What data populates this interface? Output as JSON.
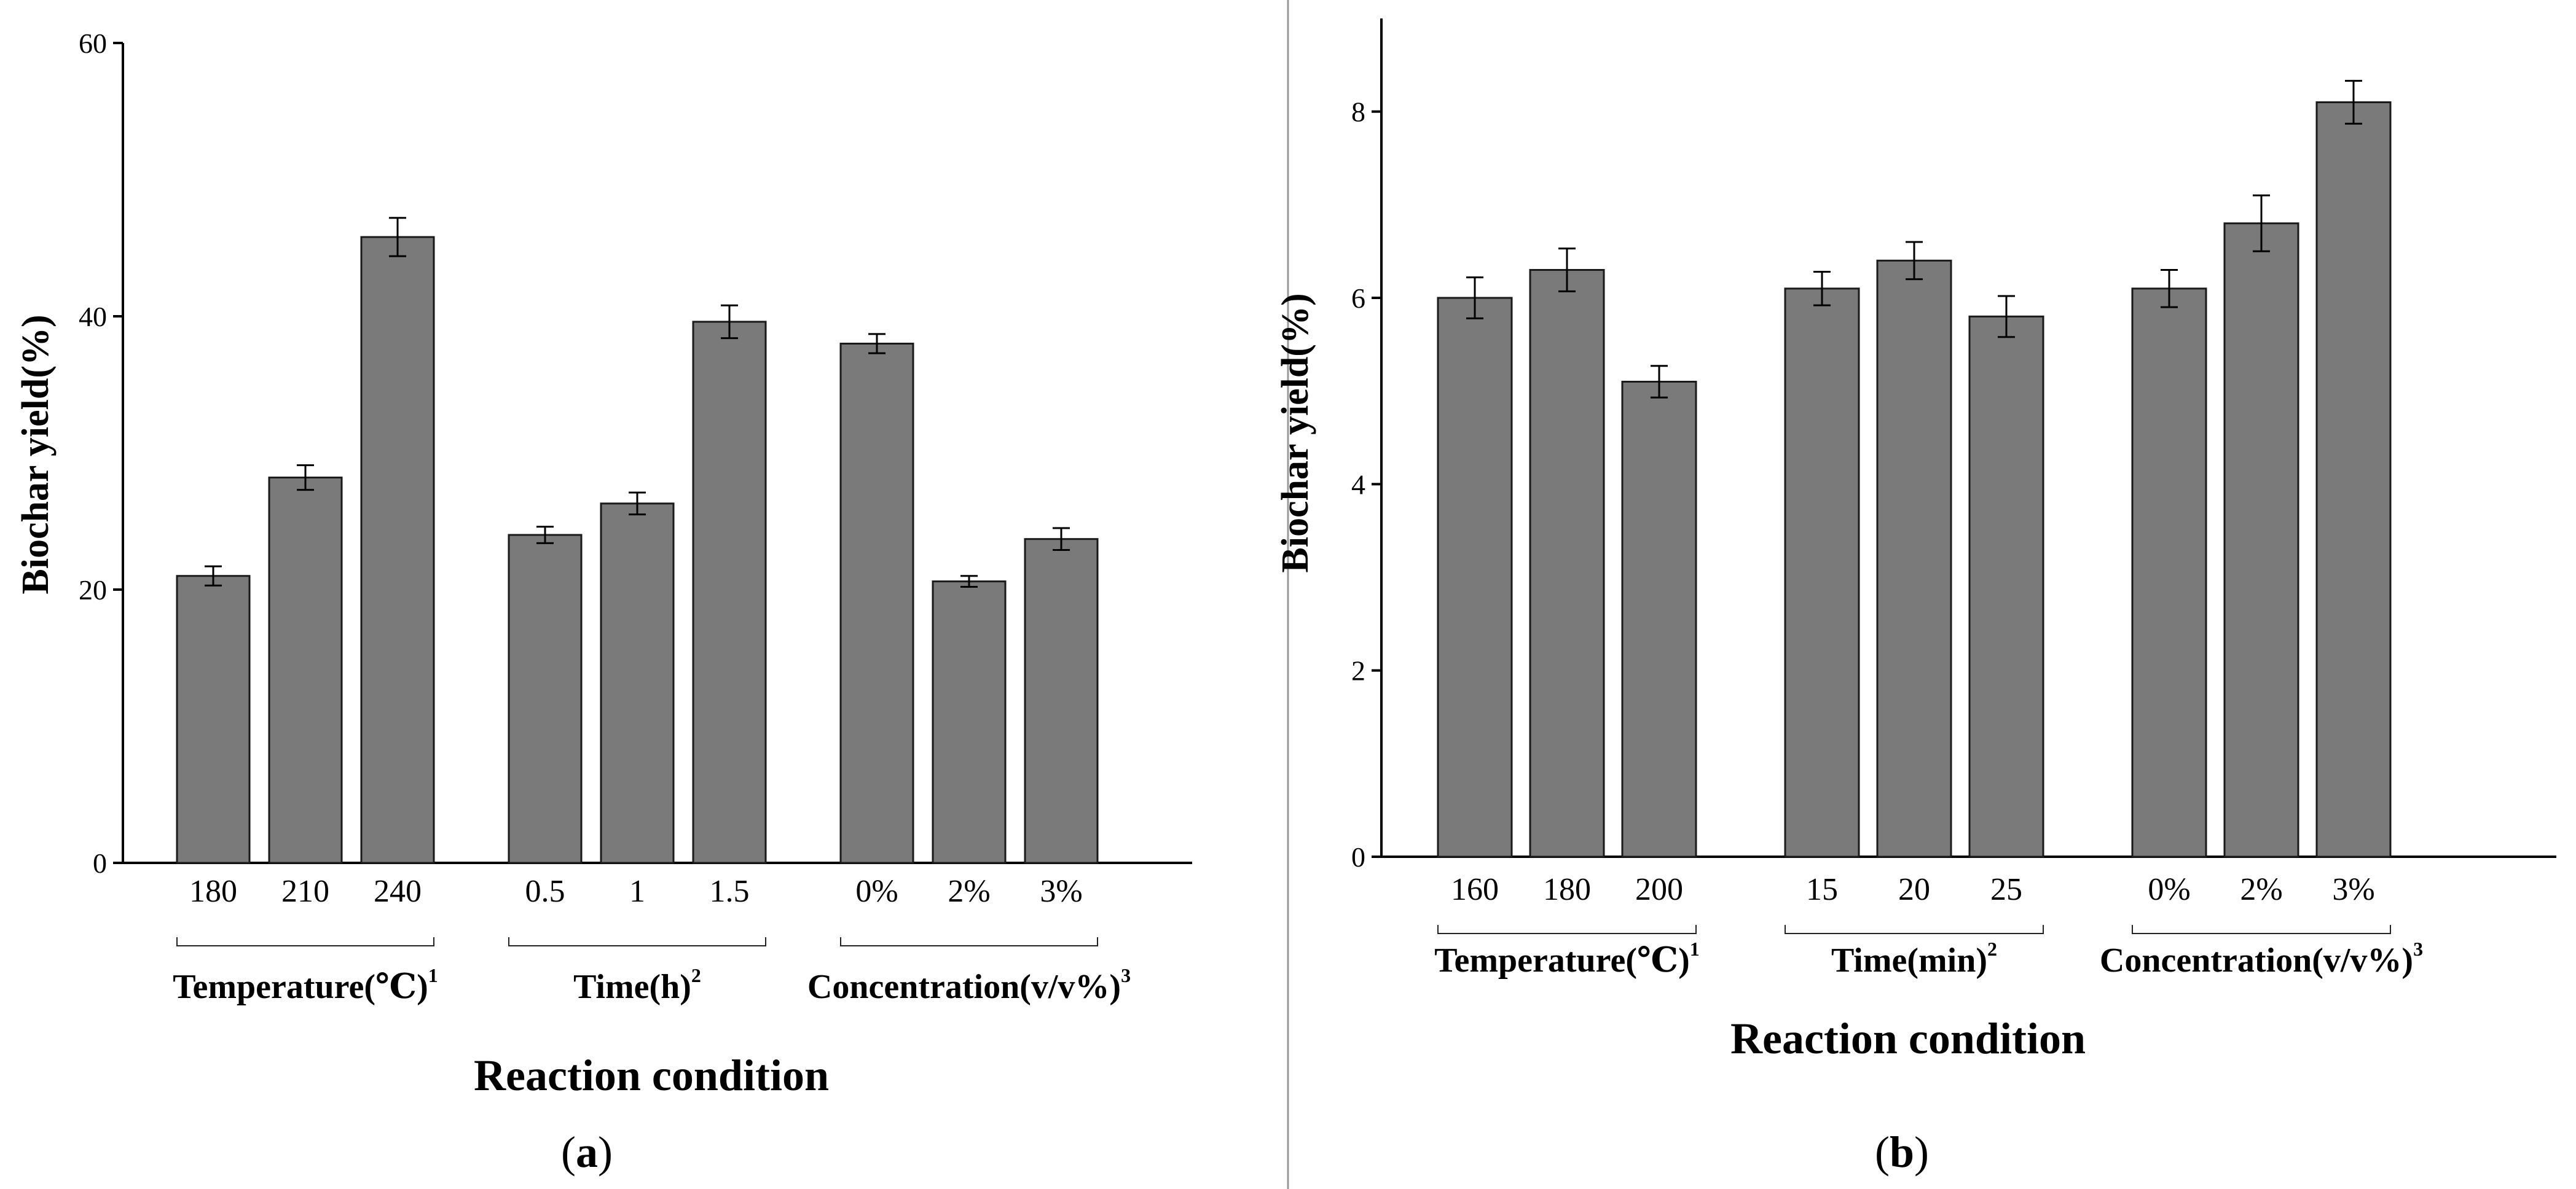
{
  "chart_data": [
    {
      "type": "bar",
      "panel": "a",
      "ylabel": "Biochar yield(%)",
      "xlabel": "Reaction condition",
      "ylim": [
        0,
        60
      ],
      "yticks": [
        0,
        20,
        40,
        60
      ],
      "groups": [
        {
          "label": "Temperature(℃)",
          "sup": "1",
          "categories": [
            "180",
            "210",
            "240"
          ],
          "values": [
            21,
            28.2,
            45.8
          ],
          "errors": [
            0.7,
            0.9,
            1.4
          ]
        },
        {
          "label": "Time(h)",
          "sup": "2",
          "categories": [
            "0.5",
            "1",
            "1.5"
          ],
          "values": [
            24,
            26.3,
            39.6
          ],
          "errors": [
            0.6,
            0.8,
            1.2
          ]
        },
        {
          "label": "Concentration(v/v%)",
          "sup": "3",
          "categories": [
            "0%",
            "2%",
            "3%"
          ],
          "values": [
            38,
            20.6,
            23.7
          ],
          "errors": [
            0.7,
            0.4,
            0.8
          ]
        }
      ]
    },
    {
      "type": "bar",
      "panel": "b",
      "ylabel": "Biochar yield(%)",
      "xlabel": "Reaction condition",
      "ylim": [
        0,
        9
      ],
      "yticks": [
        0,
        2,
        4,
        6,
        8
      ],
      "groups": [
        {
          "label": "Temperature(℃)",
          "sup": "1",
          "categories": [
            "160",
            "180",
            "200"
          ],
          "values": [
            6.0,
            6.3,
            5.1
          ],
          "errors": [
            0.22,
            0.23,
            0.17
          ]
        },
        {
          "label": "Time(min)",
          "sup": "2",
          "categories": [
            "15",
            "20",
            "25"
          ],
          "values": [
            6.1,
            6.4,
            5.8
          ],
          "errors": [
            0.18,
            0.2,
            0.22
          ]
        },
        {
          "label": "Concentration(v/v%)",
          "sup": "3",
          "categories": [
            "0%",
            "2%",
            "3%"
          ],
          "values": [
            6.1,
            6.8,
            8.1
          ],
          "errors": [
            0.2,
            0.3,
            0.23
          ]
        }
      ]
    }
  ]
}
